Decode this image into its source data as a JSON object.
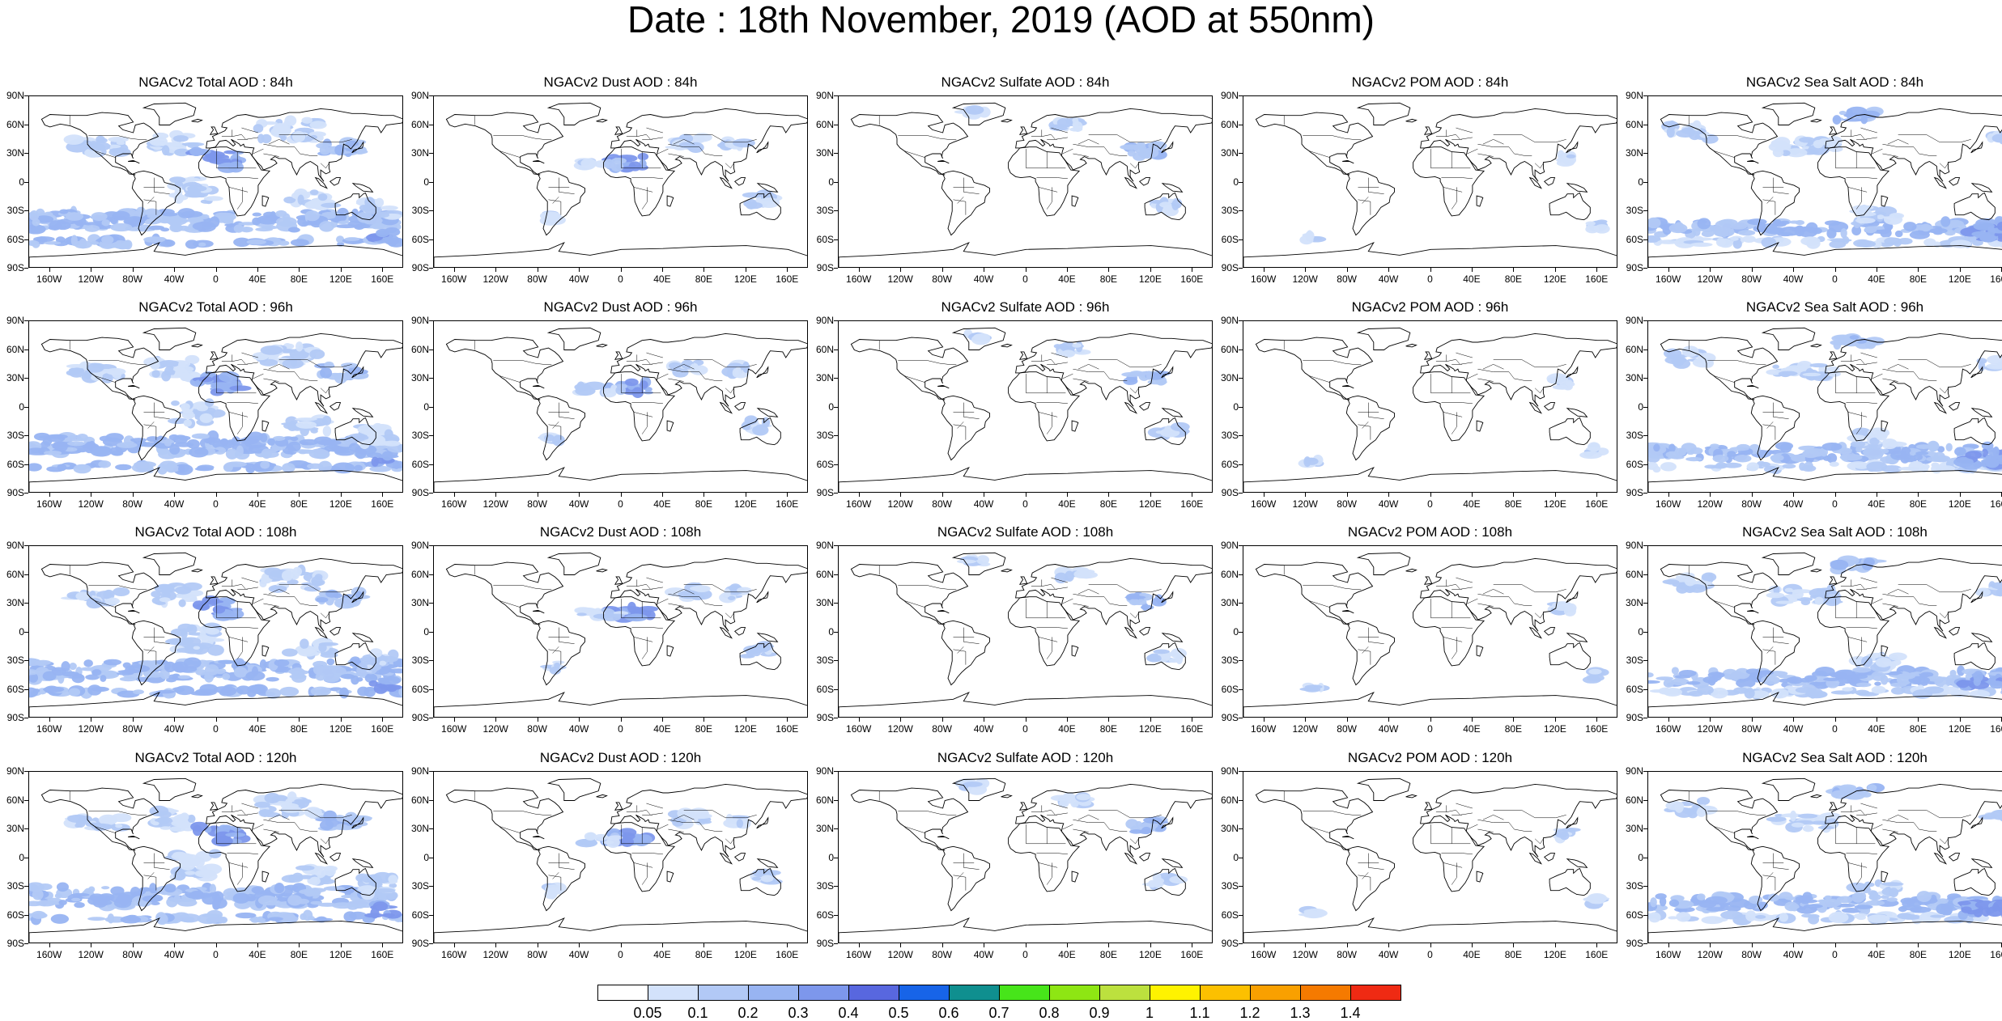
{
  "title": "Date : 18th November, 2019 (AOD at 550nm)",
  "panels": [
    [
      "NGACv2 Total AOD : 84h",
      "NGACv2 Dust AOD : 84h",
      "NGACv2 Sulfate AOD : 84h",
      "NGACv2 POM AOD : 84h",
      "NGACv2 Sea Salt AOD : 84h"
    ],
    [
      "NGACv2 Total AOD : 96h",
      "NGACv2 Dust AOD : 96h",
      "NGACv2 Sulfate AOD : 96h",
      "NGACv2 POM AOD : 96h",
      "NGACv2 Sea Salt AOD : 96h"
    ],
    [
      "NGACv2 Total AOD : 108h",
      "NGACv2 Dust AOD : 108h",
      "NGACv2 Sulfate AOD : 108h",
      "NGACv2 POM AOD : 108h",
      "NGACv2 Sea Salt AOD : 108h"
    ],
    [
      "NGACv2 Total AOD : 120h",
      "NGACv2 Dust AOD : 120h",
      "NGACv2 Sulfate AOD : 120h",
      "NGACv2 POM AOD : 120h",
      "NGACv2 Sea Salt  AOD : 120h"
    ]
  ],
  "lat_labels": [
    "90N",
    "60N",
    "30N",
    "0",
    "30S",
    "60S",
    "90S"
  ],
  "lon_labels": [
    "160W",
    "120W",
    "80W",
    "40W",
    "0",
    "40E",
    "80E",
    "120E",
    "160E"
  ],
  "colorbar": {
    "labels": [
      "0.05",
      "0.1",
      "0.2",
      "0.3",
      "0.4",
      "0.5",
      "0.6",
      "0.7",
      "0.8",
      "0.9",
      "1",
      "1.1",
      "1.2",
      "1.3",
      "1.4"
    ],
    "colors": [
      "#ffffff",
      "#d3e2fb",
      "#b2c9f6",
      "#98b4f2",
      "#7d97ec",
      "#5867df",
      "#1764e8",
      "#0f8f8f",
      "#47e51a",
      "#8ee613",
      "#bce13e",
      "#fff300",
      "#fcc000",
      "#f9a000",
      "#f57a00",
      "#ef2a13"
    ]
  },
  "colors": {
    "fill_light": "#d3e2fb",
    "fill_mid": "#b2c9f6",
    "fill_dark": "#98b4f2",
    "fill_deep": "#7d97ec",
    "coast": "#000000"
  }
}
